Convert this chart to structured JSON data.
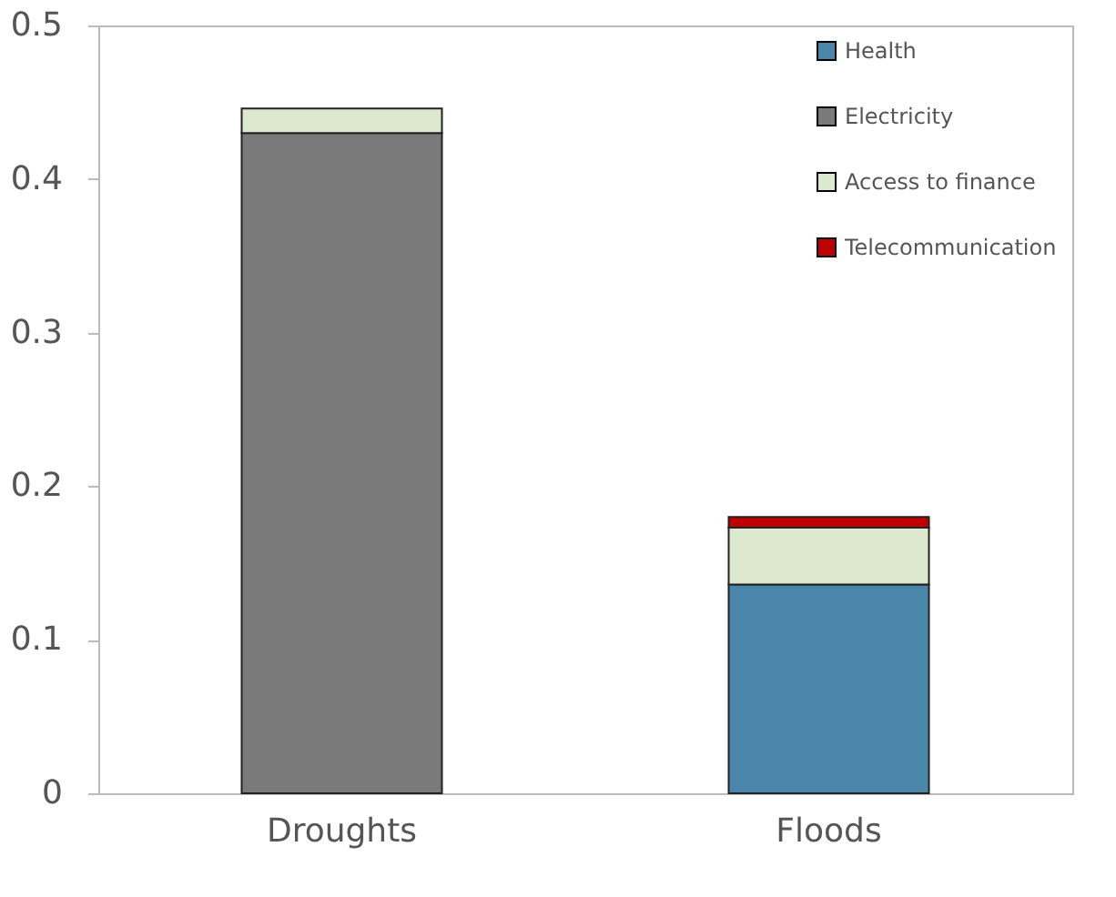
{
  "chart_data": {
    "type": "bar",
    "stacked": true,
    "categories": [
      "Droughts",
      "Floods"
    ],
    "series": [
      {
        "name": "Health",
        "color": "#4a86aa",
        "values": [
          null,
          0.136
        ]
      },
      {
        "name": "Electricity",
        "color": "#7a7a7a",
        "values": [
          0.43,
          null
        ]
      },
      {
        "name": "Access to finance",
        "color": "#dde9cf",
        "values": [
          0.016,
          0.037
        ]
      },
      {
        "name": "Telecommunication",
        "color": "#c00000",
        "values": [
          null,
          0.007
        ]
      }
    ],
    "ylim": [
      0,
      0.5
    ],
    "yticks": [
      0,
      0.1,
      0.2,
      0.3,
      0.4,
      0.5
    ],
    "grid": false,
    "legend": "top right"
  }
}
